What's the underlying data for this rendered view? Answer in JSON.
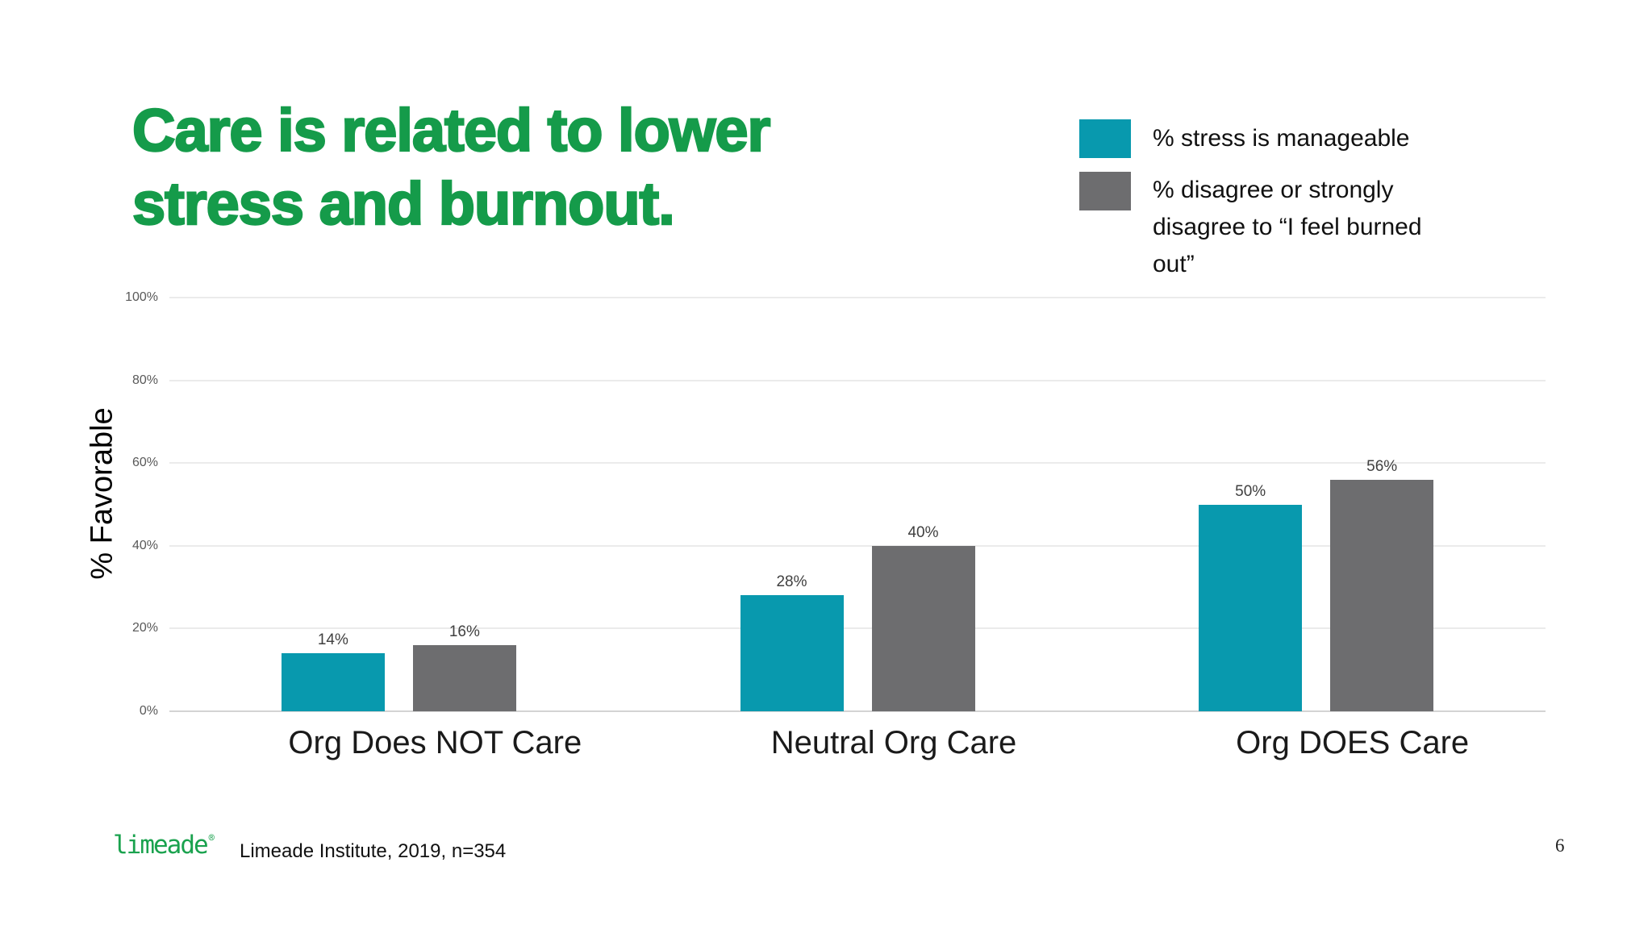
{
  "slide": {
    "title_line1": "Care is related to lower",
    "title_line2": "stress and burnout.",
    "page_number": "6",
    "footer": {
      "logo_text": "limeade",
      "logo_reg": "®",
      "citation": "Limeade Institute, 2019, n=354"
    }
  },
  "colors": {
    "title_green": "#159b4a",
    "logo_green": "#1aa24e",
    "teal": "#0899ae",
    "gray": "#6d6d6f",
    "gridline": "#ebebeb",
    "baseline": "#d4d4d4",
    "tick_label": "#595959",
    "value_label": "#3f3f3f"
  },
  "legend": {
    "items": [
      {
        "color_key": "teal",
        "label": "% stress is manageable",
        "lines": [
          "% stress is manageable"
        ]
      },
      {
        "color_key": "gray",
        "label": "% disagree or strongly disagree to “I feel burned out”",
        "lines": [
          "% disagree or strongly",
          "disagree to “I feel burned",
          "out”"
        ]
      }
    ]
  },
  "chart_data": {
    "type": "bar",
    "title": "Care is related to lower stress and burnout.",
    "categories": [
      "Org Does NOT Care",
      "Neutral Org Care",
      "Org DOES Care"
    ],
    "series": [
      {
        "name": "% stress is manageable",
        "color_key": "teal",
        "values": [
          14,
          28,
          50
        ]
      },
      {
        "name": "% disagree or strongly disagree to “I feel burned out”",
        "color_key": "gray",
        "values": [
          16,
          40,
          56
        ]
      }
    ],
    "value_label_suffix": "%",
    "xlabel": "",
    "ylabel": "% Favorable",
    "ylim": [
      0,
      100
    ],
    "yticks": [
      0,
      20,
      40,
      60,
      80,
      100
    ],
    "ytick_suffix": "%",
    "grid": true,
    "legend_position": "top-right"
  }
}
